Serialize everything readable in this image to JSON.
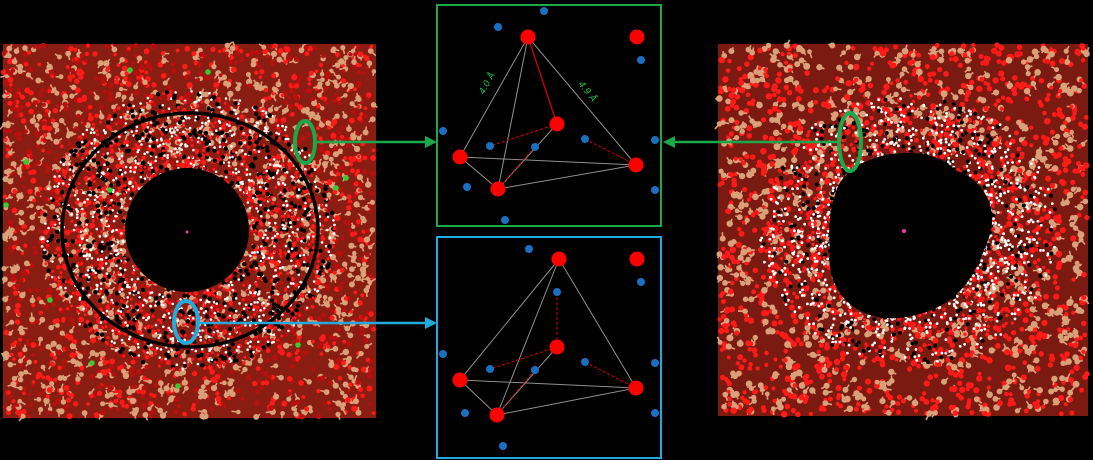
{
  "colors": {
    "background": "#000000",
    "oxygen": "#ff1a1a",
    "oxygen_dark": "#b80f0f",
    "hydrogen": "#ffffff",
    "silicon": "#d9a07a",
    "dopant": "#33cc33",
    "pore_center": "#ff33aa",
    "green_highlight": "#19a84a",
    "blue_highlight": "#22aadd",
    "tetra_hydrogen": "#1a6fc0",
    "tetra_oxygen": "#ff0000",
    "bond_gray": "#909090",
    "hbond_red": "#dd0000"
  },
  "panels": {
    "left": {
      "name": "pore-simulation-doped"
    },
    "right": {
      "name": "pore-simulation-undoped"
    },
    "inset_top": {
      "name": "tetrahedral-inset-interface",
      "distance_labels": [
        "4.0 Å",
        "4.9 Å"
      ]
    },
    "inset_bottom": {
      "name": "tetrahedral-inset-inner"
    }
  }
}
